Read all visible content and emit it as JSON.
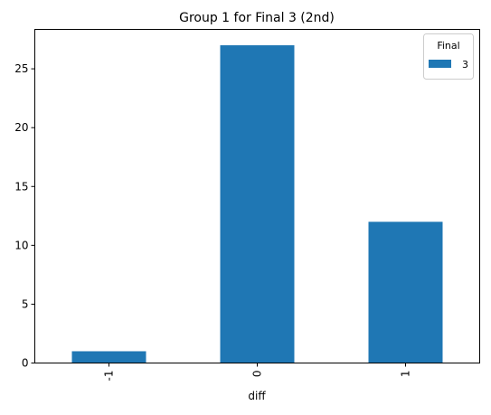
{
  "chart_data": {
    "type": "bar",
    "title": "Group 1 for Final 3 (2nd)",
    "xlabel": "diff",
    "ylabel": "",
    "categories": [
      "-1",
      "0",
      "1"
    ],
    "series": [
      {
        "name": "3",
        "values": [
          1,
          27,
          12
        ],
        "color": "#1f77b4"
      }
    ],
    "ylim": [
      0,
      28.35
    ],
    "yticks": [
      0,
      5,
      10,
      15,
      20,
      25
    ],
    "xtick_rotation": 90,
    "legend": {
      "title": "Final",
      "placement": "top-right"
    },
    "grid": false
  }
}
